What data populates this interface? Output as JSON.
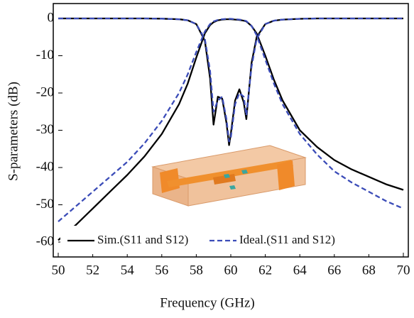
{
  "chart_data": {
    "type": "line",
    "x_label": "Frequency (GHz)",
    "y_label": "S-parameters (dB)",
    "xlim": [
      50,
      70
    ],
    "ylim": [
      -64,
      4
    ],
    "xticks": [
      50,
      52,
      54,
      56,
      58,
      60,
      62,
      64,
      66,
      68,
      70
    ],
    "yticks": [
      0,
      -10,
      -20,
      -30,
      -40,
      -50,
      -60
    ],
    "x": [
      50,
      51,
      52,
      53,
      54,
      55,
      56,
      57,
      57.5,
      58,
      58.5,
      58.8,
      59,
      59.25,
      59.5,
      59.75,
      59.9,
      60,
      60.25,
      60.5,
      60.75,
      60.9,
      61.2,
      61.5,
      62,
      62.5,
      63,
      64,
      65,
      66,
      67,
      68,
      69,
      70
    ],
    "series": [
      {
        "name": "Sim.(S11 and S12)",
        "color": "#000000",
        "dashed": false,
        "s12": [
          -59.5,
          -55.5,
          -51,
          -46.5,
          -42,
          -37,
          -31,
          -23,
          -17.5,
          -10.5,
          -4,
          -1.8,
          -1,
          -0.5,
          -0.3,
          -0.2,
          -0.2,
          -0.2,
          -0.3,
          -0.4,
          -0.6,
          -0.8,
          -2,
          -4,
          -10,
          -16.5,
          -22,
          -30,
          -34.5,
          -38,
          -40.5,
          -42.5,
          -44.5,
          -46
        ],
        "s11": [
          0,
          0,
          0,
          0,
          0,
          0,
          -0.05,
          -0.2,
          -0.5,
          -1.5,
          -6,
          -16,
          -28.5,
          -21,
          -21.5,
          -28,
          -34,
          -31,
          -22,
          -19,
          -22.5,
          -27,
          -12,
          -5,
          -1.5,
          -0.6,
          -0.3,
          -0.1,
          0,
          0,
          0,
          0,
          0,
          0
        ]
      },
      {
        "name": "Ideal.(S11 and S12)",
        "color": "#3b4cb8",
        "dashed": true,
        "s12": [
          -54.5,
          -50.5,
          -46.5,
          -42.5,
          -38.5,
          -33.5,
          -27.5,
          -20,
          -15,
          -9,
          -3.5,
          -1.5,
          -0.8,
          -0.4,
          -0.2,
          -0.1,
          -0.1,
          -0.1,
          -0.2,
          -0.3,
          -0.5,
          -0.7,
          -2,
          -4.5,
          -11,
          -17.5,
          -23,
          -31,
          -36.5,
          -41,
          -44,
          -46.5,
          -49,
          -51
        ],
        "s11": [
          0,
          0,
          0,
          0,
          0,
          0,
          -0.05,
          -0.2,
          -0.5,
          -1.5,
          -5.5,
          -14,
          -25,
          -22,
          -21,
          -27,
          -33,
          -32,
          -23,
          -20,
          -21,
          -26,
          -13,
          -5.5,
          -1.5,
          -0.6,
          -0.3,
          -0.1,
          0,
          0,
          0,
          0,
          0,
          0
        ]
      }
    ]
  }
}
